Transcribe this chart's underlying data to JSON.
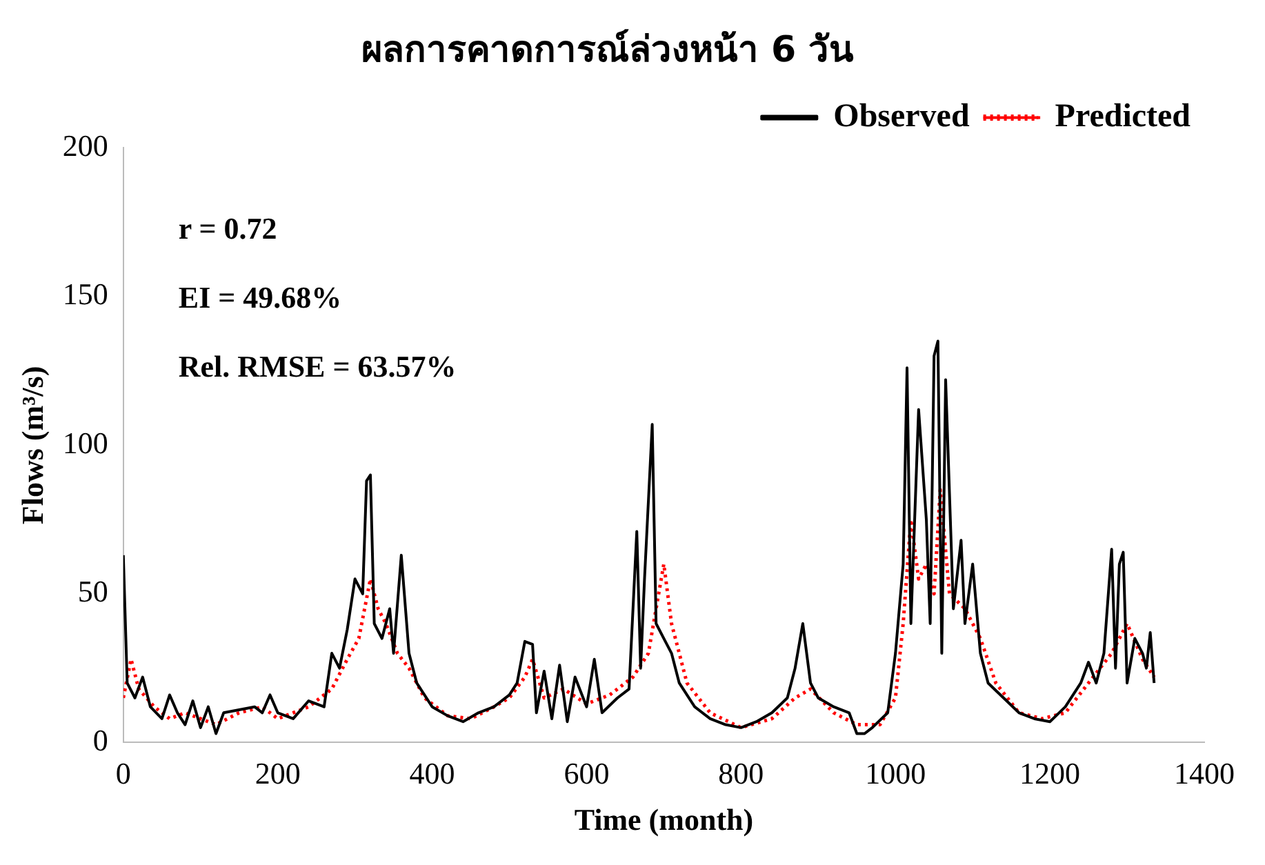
{
  "chart_data": {
    "type": "line",
    "title": "ผลการคาดการณ์ล่วงหน้า 6 วัน",
    "xlabel": "Time (month)",
    "ylabel": "Flows (m³/s)",
    "annotations": [
      "r = 0.72",
      "EI = 49.68%",
      "Rel. RMSE = 63.57%"
    ],
    "xlim": [
      0,
      1400
    ],
    "xticks": [
      0,
      200,
      400,
      600,
      800,
      1000,
      1200,
      1400
    ],
    "ylim": [
      0,
      200
    ],
    "yticks": [
      0,
      50,
      100,
      150,
      200
    ],
    "grid": false,
    "legend": "top right",
    "marker": "none",
    "series": [
      {
        "name": "Observed",
        "color": "#000000",
        "line_style": "solid",
        "x": [
          0,
          5,
          15,
          25,
          35,
          50,
          60,
          70,
          80,
          90,
          100,
          110,
          120,
          130,
          150,
          170,
          180,
          190,
          200,
          220,
          240,
          260,
          270,
          280,
          290,
          300,
          310,
          315,
          320,
          325,
          335,
          345,
          350,
          360,
          370,
          380,
          400,
          420,
          440,
          460,
          480,
          500,
          510,
          520,
          530,
          535,
          545,
          555,
          565,
          575,
          585,
          600,
          610,
          620,
          640,
          655,
          665,
          670,
          675,
          685,
          690,
          700,
          710,
          720,
          740,
          760,
          780,
          800,
          820,
          840,
          860,
          870,
          880,
          890,
          900,
          920,
          940,
          950,
          960,
          970,
          990,
          1000,
          1010,
          1015,
          1020,
          1030,
          1040,
          1045,
          1050,
          1055,
          1060,
          1065,
          1075,
          1085,
          1090,
          1100,
          1110,
          1120,
          1140,
          1160,
          1180,
          1200,
          1220,
          1240,
          1250,
          1260,
          1270,
          1280,
          1285,
          1290,
          1295,
          1300,
          1310,
          1320,
          1325,
          1330,
          1335
        ],
        "values": [
          63,
          20,
          15,
          22,
          12,
          8,
          16,
          10,
          6,
          14,
          5,
          12,
          3,
          10,
          11,
          12,
          10,
          16,
          10,
          8,
          14,
          12,
          30,
          25,
          38,
          55,
          50,
          88,
          90,
          40,
          35,
          45,
          30,
          63,
          30,
          20,
          12,
          9,
          7,
          10,
          12,
          16,
          20,
          34,
          33,
          10,
          24,
          8,
          26,
          7,
          22,
          12,
          28,
          10,
          15,
          18,
          71,
          25,
          55,
          107,
          40,
          35,
          30,
          20,
          12,
          8,
          6,
          5,
          7,
          10,
          15,
          25,
          40,
          20,
          15,
          12,
          10,
          3,
          3,
          5,
          10,
          30,
          60,
          126,
          40,
          112,
          75,
          40,
          130,
          135,
          30,
          122,
          45,
          68,
          40,
          60,
          30,
          20,
          15,
          10,
          8,
          7,
          12,
          20,
          27,
          20,
          30,
          65,
          25,
          60,
          64,
          20,
          35,
          30,
          25,
          37,
          20
        ]
      },
      {
        "name": "Predicted",
        "color": "#ff0000",
        "line_style": "dotted",
        "x": [
          0,
          10,
          20,
          40,
          60,
          80,
          100,
          120,
          150,
          180,
          200,
          240,
          270,
          290,
          305,
          320,
          330,
          340,
          355,
          370,
          390,
          420,
          450,
          480,
          500,
          520,
          530,
          545,
          570,
          600,
          630,
          660,
          680,
          690,
          700,
          710,
          730,
          760,
          800,
          840,
          870,
          890,
          920,
          950,
          980,
          1000,
          1010,
          1020,
          1030,
          1040,
          1050,
          1058,
          1070,
          1090,
          1110,
          1130,
          1160,
          1190,
          1220,
          1250,
          1280,
          1300,
          1320,
          1335
        ],
        "values": [
          15,
          28,
          18,
          12,
          8,
          10,
          8,
          6,
          10,
          12,
          8,
          12,
          18,
          28,
          35,
          55,
          45,
          40,
          30,
          25,
          15,
          9,
          8,
          12,
          15,
          22,
          28,
          15,
          18,
          13,
          16,
          22,
          30,
          45,
          60,
          40,
          20,
          10,
          5,
          8,
          15,
          18,
          10,
          6,
          6,
          15,
          40,
          75,
          55,
          60,
          50,
          85,
          50,
          45,
          35,
          20,
          10,
          8,
          10,
          20,
          30,
          40,
          28,
          22
        ]
      }
    ]
  }
}
